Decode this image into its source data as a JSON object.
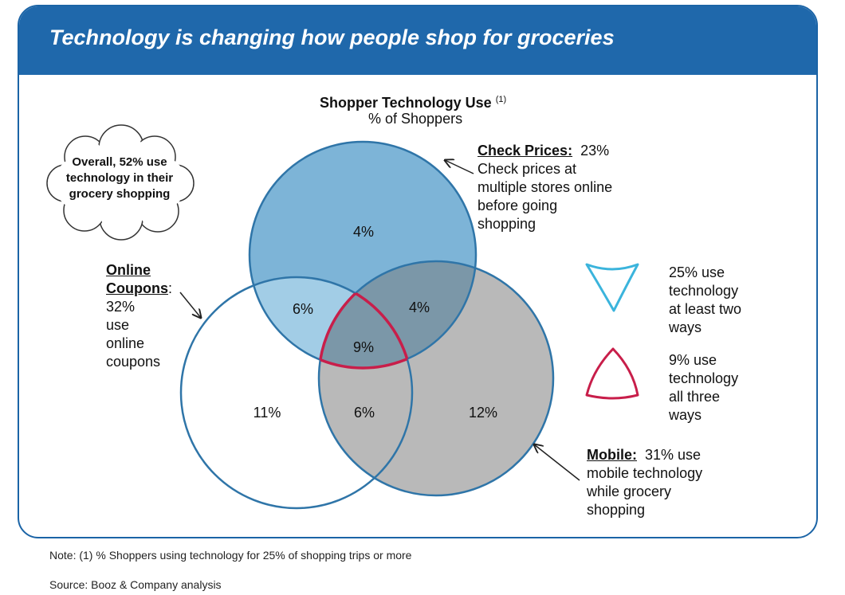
{
  "header": {
    "title": "Technology is changing how people shop for groceries"
  },
  "chart": {
    "title": "Shopper Technology Use",
    "title_note": "(1)",
    "subtitle": "% of Shoppers"
  },
  "callout": {
    "text": "Overall, 52% use technology in their grocery shopping"
  },
  "sets": {
    "check_prices": {
      "name": "Check Prices:",
      "value": "23%",
      "lines": [
        "Check prices at",
        "multiple stores online",
        "before going",
        "shopping"
      ]
    },
    "coupons": {
      "name_line1": "Online",
      "name_line2": "Coupons",
      "name_suffix": ":",
      "lines": [
        "32%",
        "use",
        "online",
        "coupons"
      ]
    },
    "mobile": {
      "name": "Mobile:",
      "value": "31% use",
      "lines": [
        "mobile technology",
        "while grocery",
        "shopping"
      ]
    }
  },
  "regions": {
    "prices_only": "4%",
    "coupons_prices": "6%",
    "prices_mobile": "4%",
    "all_three": "9%",
    "coupons_only": "11%",
    "coupons_mobile": "6%",
    "mobile_only": "12%"
  },
  "legend": {
    "two_ways": [
      "25% use",
      "technology",
      "at least two",
      "ways"
    ],
    "three_ways": [
      "9% use",
      "technology",
      "all three",
      "ways"
    ]
  },
  "colors": {
    "banner": "#1f68ab",
    "prices_fill": "#7db4d7",
    "mobile_fill": "#b9b9b9",
    "overlap_prices_coupons": "#a2cde6",
    "overlap_prices_mobile": "#7b97a8",
    "circle_stroke": "#2f75a8",
    "center_stroke": "#c81e4a",
    "legend_two_ways": "#3bb4dc"
  },
  "footer": {
    "note": "Note: (1) % Shoppers using technology for 25% of shopping trips or more",
    "source": "Source: Booz & Company analysis"
  }
}
